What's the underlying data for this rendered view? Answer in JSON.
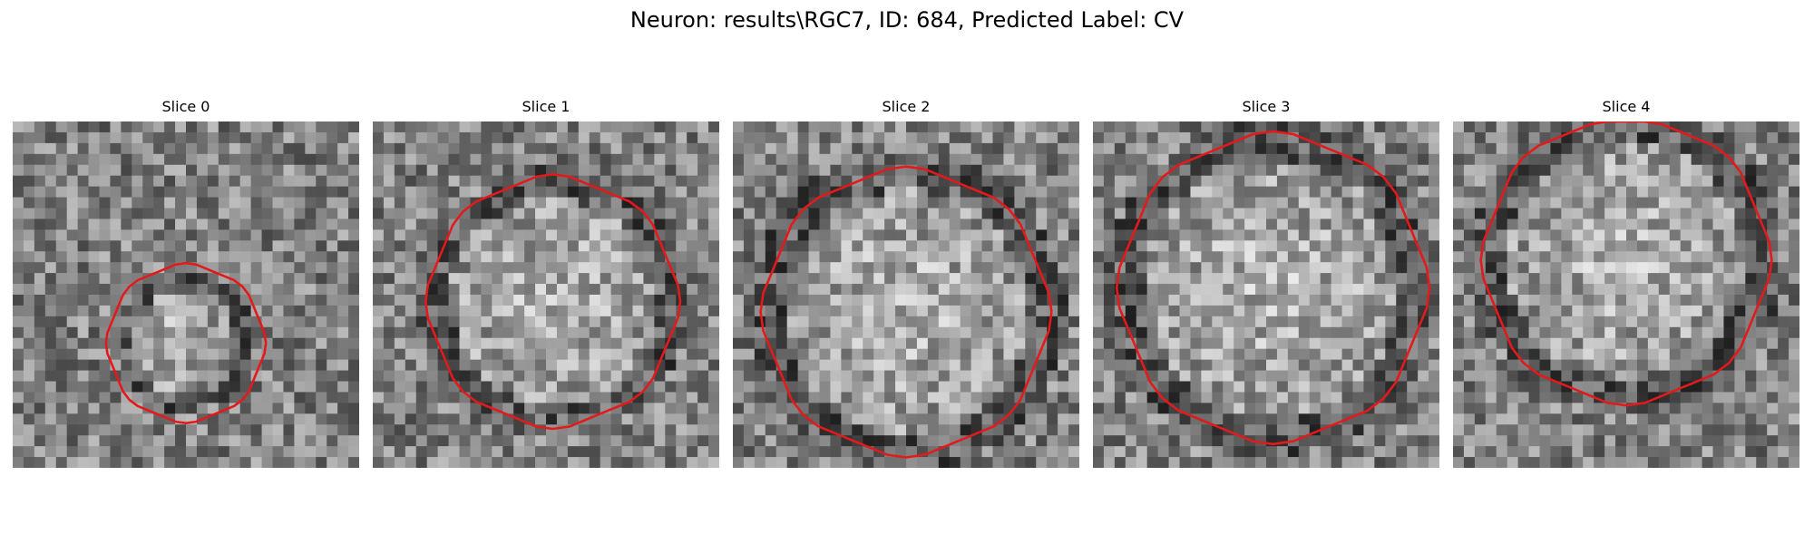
{
  "figure": {
    "title": "Neuron: results\\RGC7, ID: 684, Predicted Label: CV"
  },
  "contour_color": "#e31a1c",
  "colormap": "gray",
  "grid_size": 32,
  "panels": [
    {
      "title": "Slice 0",
      "seed": 11,
      "ring_bright": 0,
      "contour_r": 0.39
    },
    {
      "title": "Slice 1",
      "seed": 23,
      "ring_bright": 1,
      "contour_r": 0.7
    },
    {
      "title": "Slice 2",
      "seed": 37,
      "ring_bright": 2,
      "contour_r": 0.78
    },
    {
      "title": "Slice 3",
      "seed": 41,
      "ring_bright": 1,
      "contour_r": 0.85
    },
    {
      "title": "Slice 4",
      "seed": 53,
      "ring_bright": 1,
      "contour_r": 0.8
    }
  ]
}
